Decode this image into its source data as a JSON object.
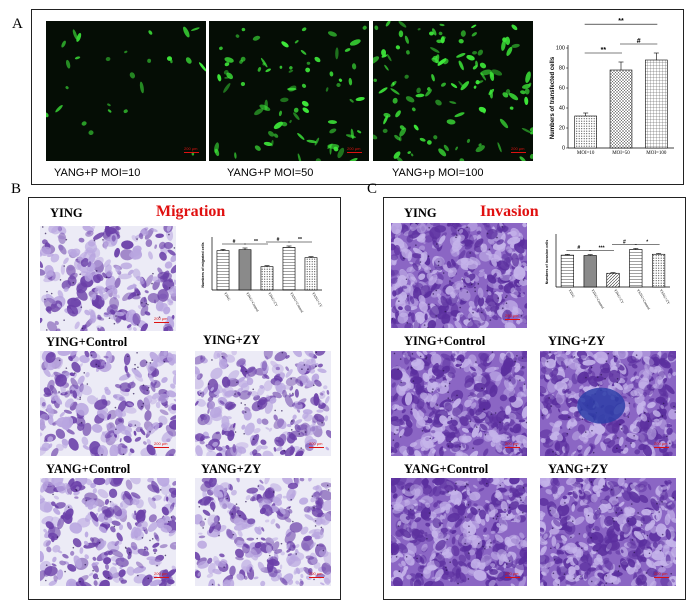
{
  "panels": {
    "a": {
      "letter": "A",
      "images": [
        {
          "caption": "YANG+P MOI=10",
          "scale": "200 μm",
          "density": 26
        },
        {
          "caption": "YANG+P MOI=50",
          "scale": "200 μm",
          "density": 80
        },
        {
          "caption": "YANG+p MOI=100",
          "scale": "200 μm",
          "density": 120
        }
      ]
    },
    "b": {
      "letter": "B",
      "title": "Migration",
      "images": [
        {
          "label": "YING",
          "scale": "200 μm"
        },
        {
          "label": "YING+Control",
          "scale": "200 μm"
        },
        {
          "label": "YING+ZY",
          "scale": "200 μm"
        },
        {
          "label": "YANG+Control",
          "scale": "200 μm"
        },
        {
          "label": "YANG+ZY",
          "scale": "200 μm"
        }
      ]
    },
    "c": {
      "letter": "C",
      "title": "Invasion",
      "images": [
        {
          "label": "YING",
          "scale": "200 μm"
        },
        {
          "label": "YING+Control",
          "scale": "200 μm"
        },
        {
          "label": "YING+ZY",
          "scale": "200 μm"
        },
        {
          "label": "YANG+Control",
          "scale": "200 μm"
        },
        {
          "label": "YANG+ZY",
          "scale": "200 μm"
        }
      ]
    }
  },
  "colors": {
    "fluor_bg": "#050d05",
    "fluor_cell": "#3ee83a",
    "stain_bg": "#ecebf6",
    "stain_cell": "#6a3fa8",
    "invasion_bg": "#8b66c4",
    "title_red": "#e01010",
    "scale_red": "#dd1111"
  },
  "chart_data": [
    {
      "type": "bar",
      "categories": [
        "MOI=10",
        "MOI=50",
        "MOI=100"
      ],
      "values": [
        32,
        78,
        88
      ],
      "errors": [
        3,
        8,
        7
      ],
      "ylabel": "Numbers of transfected cells",
      "ylim": [
        0,
        100
      ],
      "yticks": [
        0,
        20,
        40,
        60,
        80,
        100
      ],
      "patterns": [
        "dots",
        "crosshatch",
        "grid"
      ],
      "significance": [
        {
          "from": 0,
          "to": 1,
          "label": "**"
        },
        {
          "from": 1,
          "to": 2,
          "label": "#"
        },
        {
          "from": 0,
          "to": 2,
          "label": "**"
        }
      ]
    },
    {
      "type": "bar",
      "categories": [
        "YING",
        "YING+Control",
        "YING+ZY",
        "YANG+Control",
        "YANG+ZY"
      ],
      "values": [
        118,
        121,
        70,
        128,
        97
      ],
      "errors": [
        4,
        5,
        3,
        4,
        3
      ],
      "ylabel": "Numbers of migrated cells",
      "ylim": [
        0,
        150
      ],
      "patterns": [
        "lines",
        "solid",
        "dots",
        "lines",
        "dots"
      ],
      "significance": [
        {
          "from": 0,
          "to": 1,
          "label": "#"
        },
        {
          "from": 1,
          "to": 2,
          "label": "**"
        },
        {
          "from": 2,
          "to": 3,
          "label": "#"
        },
        {
          "from": 3,
          "to": 4,
          "label": "**"
        }
      ]
    },
    {
      "type": "bar",
      "categories": [
        "YING",
        "YING+Control",
        "YING+ZY",
        "YANG+Control",
        "YANG+ZY"
      ],
      "values": [
        255,
        252,
        110,
        300,
        262
      ],
      "errors": [
        6,
        7,
        5,
        8,
        6
      ],
      "ylabel": "Numbers of invasion cells",
      "ylim": [
        0,
        400
      ],
      "patterns": [
        "lines",
        "solid",
        "diagonal",
        "lines",
        "dots"
      ],
      "significance": [
        {
          "from": 0,
          "to": 1,
          "label": "#"
        },
        {
          "from": 1,
          "to": 2,
          "label": "***"
        },
        {
          "from": 2,
          "to": 3,
          "label": "#"
        },
        {
          "from": 3,
          "to": 4,
          "label": "*"
        }
      ]
    }
  ]
}
